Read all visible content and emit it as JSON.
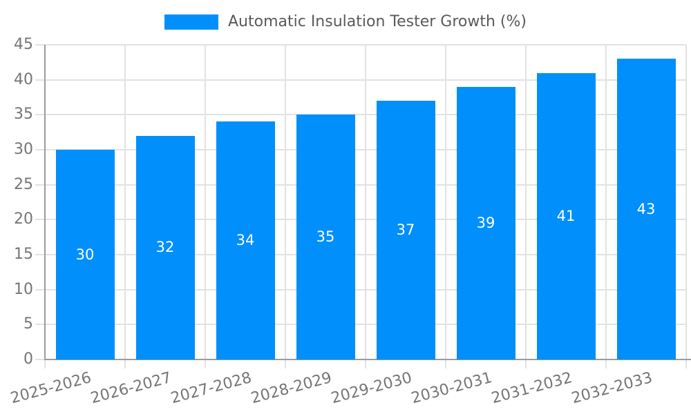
{
  "legend": {
    "label": "Automatic Insulation Tester Growth (%)"
  },
  "chart_data": {
    "type": "bar",
    "title": "Automatic Insulation Tester Growth (%)",
    "categories": [
      "2025-2026",
      "2026-2027",
      "2027-2028",
      "2028-2029",
      "2029-2030",
      "2030-2031",
      "2031-2032",
      "2032-2033"
    ],
    "values": [
      30,
      32,
      34,
      35,
      37,
      39,
      41,
      43
    ],
    "xlabel": "",
    "ylabel": "",
    "ylim": [
      0,
      45
    ],
    "yticks": [
      0,
      5,
      10,
      15,
      20,
      25,
      30,
      35,
      40,
      45
    ],
    "grid": true,
    "legend_position": "top-center",
    "x_tick_rotation_deg": 15,
    "bar_color": "#008FFB",
    "value_label_color": "#ffffff",
    "grid_color": "#e2e2e2",
    "axis_color": "#9b9b9b",
    "tick_label_color": "#757575",
    "legend_text_color": "#595959",
    "background_color": "#ffffff"
  }
}
